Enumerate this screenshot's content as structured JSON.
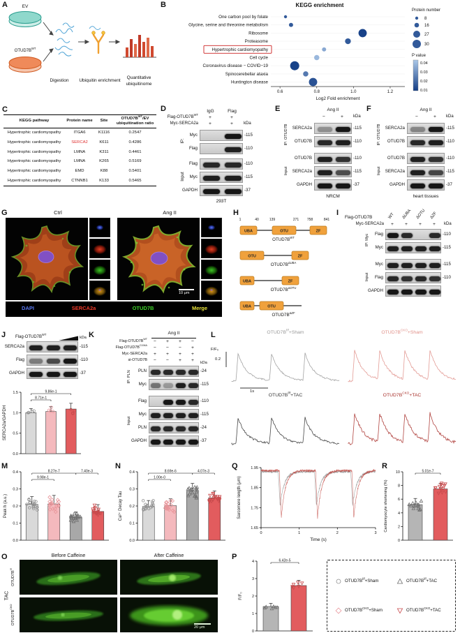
{
  "panelA": {
    "label": "A",
    "dish_top": "EV",
    "dish_bottom": "OTUD7B^{WT}",
    "step1": "Digestion",
    "step2": "Ubiquitin enrichment",
    "step3a": "Quantitative",
    "step3b": "ubiquitinome"
  },
  "panelB": {
    "label": "B"
  },
  "panelC": {
    "label": "C",
    "headers": {
      "pathway": "KEGG pathway",
      "protein": "Protein name",
      "site": "Site",
      "ratio": "OTUD7B^{WT}/EV ubiquitination ratio"
    },
    "rows": [
      {
        "pathway": "Hypertrophic cardiomyopathy",
        "protein": "ITGA6",
        "site": "K1116",
        "ratio": "0.2547",
        "highlight": false
      },
      {
        "pathway": "Hypertrophic cardiomyopathy",
        "protein": "SERCA2",
        "site": "K611",
        "ratio": "0.4286",
        "highlight": true
      },
      {
        "pathway": "Hypertrophic cardiomyopathy",
        "protein": "LMNA",
        "site": "K311",
        "ratio": "0.4461",
        "highlight": false
      },
      {
        "pathway": "Hypertrophic cardiomyopathy",
        "protein": "LMNA",
        "site": "K265",
        "ratio": "0.5169",
        "highlight": false
      },
      {
        "pathway": "Hypertrophic cardiomyopathy",
        "protein": "EMD",
        "site": "K88",
        "ratio": "0.5401",
        "highlight": false
      },
      {
        "pathway": "Hypertrophic cardiomyopathy",
        "protein": "CTNNB1",
        "site": "K133",
        "ratio": "0.5465",
        "highlight": false
      }
    ]
  },
  "panelD": {
    "label": "D",
    "lane_headers": [
      "IgG",
      "Flag"
    ],
    "rows": [
      {
        "label": "Flag-OTUD7B^{WT}",
        "signs": [
          "+",
          "+"
        ]
      },
      {
        "label": "Myc-SERCA2a",
        "signs": [
          "+",
          "+"
        ]
      }
    ],
    "kda": "kDa",
    "ip_label": "IP:",
    "input_label": "Input",
    "ip_rows": [
      {
        "name": "Myc",
        "kda": "-115"
      },
      {
        "name": "Flag",
        "kda": "-110"
      }
    ],
    "input_rows": [
      {
        "name": "Flag",
        "kda": "-110"
      },
      {
        "name": "Myc",
        "kda": "-115"
      },
      {
        "name": "GAPDH",
        "kda": "-37"
      }
    ],
    "cell_line": "293T"
  },
  "panelE": {
    "label": "E",
    "treatment": "Ang II",
    "signs": [
      "−",
      "+"
    ],
    "kda": "kDa",
    "ip_label": "IP: OTUD7B",
    "input_label": "Input",
    "ip_rows": [
      {
        "name": "SERCA2a",
        "kda": "-115"
      },
      {
        "name": "OTUD7B",
        "kda": "-110"
      }
    ],
    "input_rows": [
      {
        "name": "OTUD7B",
        "kda": "-110"
      },
      {
        "name": "SERCA2a",
        "kda": "-115"
      },
      {
        "name": "GAPDH",
        "kda": "-37"
      }
    ],
    "tissue": "NRCM"
  },
  "panelF": {
    "label": "F",
    "treatment": "Ang II",
    "signs": [
      "−",
      "+"
    ],
    "kda": "kDa",
    "ip_label": "IP: OTUD7B",
    "input_label": "Input",
    "ip_rows": [
      {
        "name": "SERCA2a",
        "kda": "-115"
      },
      {
        "name": "OTUD7B",
        "kda": "-110"
      }
    ],
    "input_rows": [
      {
        "name": "OTUD7B",
        "kda": "-110"
      },
      {
        "name": "SERCA2a",
        "kda": "-115"
      },
      {
        "name": "GAPDH",
        "kda": "-37"
      }
    ],
    "tissue": "heart tissues"
  },
  "panelG": {
    "label": "G",
    "col1_title": "Ctrl",
    "col2_title": "Ang II",
    "channels": [
      {
        "name": "DAPI",
        "color": "#5b79f2"
      },
      {
        "name": "SERCA2a",
        "color": "#ef3b2a"
      },
      {
        "name": "OTUD7B",
        "color": "#3fd42a"
      },
      {
        "name": "Merge",
        "color": "#e8e23a"
      }
    ],
    "scalebar": "10 μm"
  },
  "panelH": {
    "label": "H",
    "positions": [
      "1",
      "40",
      "139",
      "271",
      "758",
      "841"
    ],
    "domains": {
      "uba": "UBA",
      "otu": "OTU",
      "zf": "ZF"
    },
    "constructs": [
      "OTUD7B^{WT}",
      "OTUD7B^{ΔUBA}",
      "OTUD7B^{ΔOTU}",
      "OTUD7B^{ΔZF}"
    ]
  },
  "panelI": {
    "label": "I",
    "group_label": "Flag-OTUD7B",
    "lanes": [
      "WT",
      "ΔUBA",
      "ΔOTU",
      "ΔZF"
    ],
    "row2_label": "Myc-SERCA2a",
    "row2_signs": [
      "+",
      "+",
      "+",
      "+"
    ],
    "kda": "kDa",
    "ip_label": "IP: Myc",
    "input_label": "Input",
    "ip_rows": [
      {
        "name": "Flag",
        "kda": "-110"
      },
      {
        "name": "Myc",
        "kda": "-115"
      }
    ],
    "input_rows": [
      {
        "name": "Myc",
        "kda": "-115"
      },
      {
        "name": "Flag",
        "kda": "-110"
      },
      {
        "name": "GAPDH",
        "kda": ""
      }
    ]
  },
  "panelJ": {
    "label": "J",
    "header": "Flag-OTUD7B^{WT}",
    "kda": "kDa",
    "rows": [
      {
        "name": "SERCA2a",
        "kda": "-115"
      },
      {
        "name": "Flag",
        "kda": "-110"
      },
      {
        "name": "GAPDH",
        "kda": "-37"
      }
    ]
  },
  "panelK": {
    "label": "K",
    "treatment": "Ang II",
    "condition_rows": [
      {
        "name": "Flag-OTUD7B^{WT}",
        "signs": [
          "−",
          "+",
          "+",
          "−"
        ]
      },
      {
        "name": "Flag-OTUD7B^{C194A}",
        "signs": [
          "−",
          "−",
          "−",
          "+"
        ]
      },
      {
        "name": "Myc-SERCA2a",
        "signs": [
          "+",
          "+",
          "+",
          "+"
        ]
      },
      {
        "name": "si-OTUD7B",
        "signs": [
          "−",
          "−",
          "+",
          "+"
        ]
      }
    ],
    "kda": "kDa",
    "ip_label": "IP: PLN",
    "input_label": "Input",
    "ip_rows": [
      {
        "name": "PLN",
        "kda": "-24"
      },
      {
        "name": "Myc",
        "kda": "-115"
      }
    ],
    "input_rows": [
      {
        "name": "Flag",
        "kda": "-110"
      },
      {
        "name": "Myc",
        "kda": "-115"
      },
      {
        "name": "PLN",
        "kda": "-24"
      },
      {
        "name": "GAPDH",
        "kda": "-37"
      }
    ]
  },
  "panelL": {
    "label": "L"
  },
  "panelM": {
    "label": "M"
  },
  "panelN": {
    "label": "N"
  },
  "panelO": {
    "label": "O",
    "col_titles": [
      "Before Caffeine",
      "After Caffeine"
    ],
    "row_labels": [
      "OTUD7B^{f/f}",
      "OTUD7B^{CKO}"
    ],
    "group_label": "TAC",
    "scalebar": "20 μm"
  },
  "panelP": {
    "label": "P"
  },
  "panelQ": {
    "label": "Q"
  },
  "panelR": {
    "label": "R"
  },
  "legend_box": {
    "items": [
      {
        "marker": "circle",
        "color": "#8f8f8f",
        "label": "OTUD7B^{f/f}+Sham"
      },
      {
        "marker": "triangle-up",
        "color": "#6f6f6f",
        "label": "OTUD7B^{f/f}+TAC"
      },
      {
        "marker": "diamond",
        "color": "#e8959a",
        "label": "OTUD7B^{CKO}+Sham"
      },
      {
        "marker": "triangle-down",
        "color": "#c94b4d",
        "label": "OTUD7B^{CKO}+TAC"
      }
    ]
  },
  "chart_data": {
    "kegg": {
      "type": "scatter",
      "title": "KEGG enrichment",
      "xlabel": "Log2 Fold enrichment",
      "xlim": [
        0.55,
        1.28
      ],
      "xticks": [
        "0.6",
        "0.8",
        "1.0",
        "1.2"
      ],
      "xtick_values": [
        0.6,
        0.8,
        1.0,
        1.2
      ],
      "rows": [
        {
          "label": "One carbon pool by folate",
          "x": 0.63,
          "n": 8,
          "p": 0.012,
          "highlight": false
        },
        {
          "label": "Glycine, serine and threonine metabolism",
          "x": 0.66,
          "n": 12,
          "p": 0.012,
          "highlight": false
        },
        {
          "label": "Ribosome",
          "x": 1.05,
          "n": 27,
          "p": 0.006,
          "highlight": false
        },
        {
          "label": "Proteasome",
          "x": 0.97,
          "n": 18,
          "p": 0.012,
          "highlight": false
        },
        {
          "label": "Hypertrophic cardiomyopathy",
          "x": 0.84,
          "n": 12,
          "p": 0.032,
          "highlight": true
        },
        {
          "label": "Cell cycle",
          "x": 0.8,
          "n": 16,
          "p": 0.036,
          "highlight": false
        },
        {
          "label": "Coronavirus disease − COVID−19",
          "x": 0.68,
          "n": 30,
          "p": 0.006,
          "highlight": false
        },
        {
          "label": "Spinocerebellar ataxia",
          "x": 0.74,
          "n": 16,
          "p": 0.02,
          "highlight": false
        },
        {
          "label": "Huntington disease",
          "x": 0.78,
          "n": 27,
          "p": 0.01,
          "highlight": false
        }
      ],
      "size_legend": {
        "title": "Protein number",
        "values": [
          8,
          16,
          27,
          30
        ]
      },
      "p_legend": {
        "title": "P value",
        "ticks": [
          "0.04",
          "0.03",
          "0.02",
          "0.01"
        ]
      }
    },
    "serca_quant": {
      "type": "bar",
      "ylabel": "SERCA2a/GAPDH",
      "ylim": [
        0,
        1.5
      ],
      "yticks": [
        "0.0",
        "0.5",
        "1.0",
        "1.5"
      ],
      "values": [
        1.0,
        1.03,
        1.09
      ],
      "errors": [
        0.1,
        0.12,
        0.14
      ],
      "colors": [
        "#d9d9d9",
        "#f4b9bd",
        "#e25c5e"
      ],
      "markers": [
        "circle",
        "circle",
        "circle"
      ],
      "marker_colors": [
        "#8f8f8f",
        "#e8959a",
        "#c94b4d"
      ],
      "ndots": 4,
      "pvals": [
        {
          "a": 0,
          "b": 2,
          "label": "9.86e-1",
          "level": 1
        },
        {
          "a": 0,
          "b": 1,
          "label": "8.71e-1",
          "level": 0
        }
      ]
    },
    "peak_h": {
      "type": "bar",
      "ylabel": "Peak h (a.u.)",
      "ylim": [
        0,
        0.4
      ],
      "yticks": [
        "0.0",
        "0.1",
        "0.2",
        "0.3",
        "0.4"
      ],
      "values": [
        0.21,
        0.212,
        0.135,
        0.168
      ],
      "errors": [
        0.045,
        0.05,
        0.03,
        0.04
      ],
      "colors": [
        "#d9d9d9",
        "#f4b9bd",
        "#a8a8a8",
        "#e25c5e"
      ],
      "markers": [
        "circle",
        "diamond",
        "triangle-up",
        "triangle-down"
      ],
      "marker_colors": [
        "#8f8f8f",
        "#e8959a",
        "#6f6f6f",
        "#c94b4d"
      ],
      "ndots": 18,
      "pvals": [
        {
          "a": 0,
          "b": 1,
          "label": "9.98e-1",
          "level": 0
        },
        {
          "a": 0,
          "b": 2,
          "label": "8.27e-7",
          "level": 1
        },
        {
          "a": 2,
          "b": 3,
          "label": "7.40e-3",
          "level": 1
        }
      ]
    },
    "decay_tau": {
      "type": "bar",
      "ylabel": "Ca²⁺ Decay Tau",
      "ylim": [
        0,
        0.4
      ],
      "yticks": [
        "0.0",
        "0.1",
        "0.2",
        "0.3",
        "0.4"
      ],
      "values": [
        0.197,
        0.202,
        0.287,
        0.248
      ],
      "errors": [
        0.035,
        0.04,
        0.045,
        0.04
      ],
      "colors": [
        "#d9d9d9",
        "#f4b9bd",
        "#a8a8a8",
        "#e25c5e"
      ],
      "markers": [
        "circle",
        "diamond",
        "triangle-up",
        "triangle-down"
      ],
      "marker_colors": [
        "#8f8f8f",
        "#e8959a",
        "#6f6f6f",
        "#c94b4d"
      ],
      "ndots": 18,
      "pvals": [
        {
          "a": 0,
          "b": 1,
          "label": "1.00e-0",
          "level": 0
        },
        {
          "a": 0,
          "b": 2,
          "label": "8.69e-6",
          "level": 1
        },
        {
          "a": 2,
          "b": 3,
          "label": "4.07e-3",
          "level": 1
        }
      ]
    },
    "calcium_traces": {
      "type": "line",
      "scale_y_label": "F/F₀",
      "scale_y_value": "0.2",
      "scale_x_label": "1s",
      "series": [
        {
          "name": "OTUD7B^{f/f}+Sham",
          "color": "#999999",
          "amplitude": 0.9,
          "beats": 3,
          "noise": 1.1
        },
        {
          "name": "OTUD7B^{CKO}+Sham",
          "color": "#e09089",
          "amplitude": 1.0,
          "beats": 4,
          "noise": 1.4
        },
        {
          "name": "OTUD7B^{f/f}+TAC",
          "color": "#333333",
          "amplitude": 0.85,
          "beats": 3,
          "noise": 1.5
        },
        {
          "name": "OTUD7B^{CKO}+TAC",
          "color": "#a8302b",
          "amplitude": 1.0,
          "beats": 4,
          "noise": 2.0
        }
      ]
    },
    "sarcomere": {
      "type": "line",
      "ylabel": "Sarcomere length (μm)",
      "xlabel": "Time (s)",
      "ylim": [
        1.65,
        1.95
      ],
      "yticks": [
        "1.65",
        "1.75",
        "1.85",
        "1.95"
      ],
      "xticks": [
        "0",
        "1",
        "2",
        "3"
      ],
      "series": [
        {
          "name": "OTUD7B^{f/f}+TAC",
          "color": "#8f8f8f",
          "baseline": 1.93,
          "dip": 1.76,
          "dip_times": [
            0.45,
            1.4,
            2.35
          ]
        },
        {
          "name": "OTUD7B^{CKO}+TAC",
          "color": "#c0453f",
          "baseline": 1.935,
          "dip": 1.7,
          "dip_times": [
            0.48,
            1.43,
            2.38
          ]
        }
      ]
    },
    "shortening": {
      "type": "bar",
      "ylabel": "Cardiomyocyte shortening (%)",
      "ylim": [
        0,
        10
      ],
      "yticks": [
        "0",
        "2",
        "4",
        "6",
        "8",
        "10"
      ],
      "values": [
        5.2,
        7.5
      ],
      "errors": [
        0.9,
        0.8
      ],
      "colors": [
        "#b5b5b5",
        "#e25c5e"
      ],
      "markers": [
        "triangle-up",
        "triangle-down"
      ],
      "marker_colors": [
        "#6f6f6f",
        "#c94b4d"
      ],
      "ndots": 14,
      "pvals": [
        {
          "a": 0,
          "b": 1,
          "label": "5.01e-7",
          "level": 1
        }
      ]
    },
    "ff0": {
      "type": "bar",
      "ylabel": "F/F₀",
      "ylim": [
        0,
        4
      ],
      "yticks": [
        "0",
        "1",
        "2",
        "3",
        "4"
      ],
      "values": [
        1.4,
        2.6
      ],
      "errors": [
        0.18,
        0.3
      ],
      "colors": [
        "#b5b5b5",
        "#e25c5e"
      ],
      "markers": [
        "triangle-up",
        "triangle-down"
      ],
      "marker_colors": [
        "#6f6f6f",
        "#c94b4d"
      ],
      "ndots": 6,
      "pvals": [
        {
          "a": 0,
          "b": 1,
          "label": "6.42e-5",
          "level": 1
        }
      ]
    }
  }
}
